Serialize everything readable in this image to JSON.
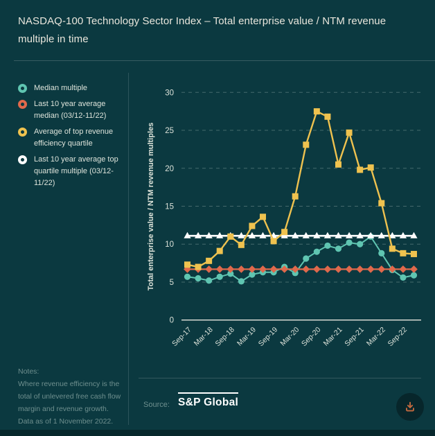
{
  "title": "NASDAQ-100 Technology Sector Index – Total enterprise value / NTM revenue multiple in time",
  "legend": {
    "items": [
      {
        "label": "Median multiple",
        "color": "#5FC5B1"
      },
      {
        "label": "Last 10 year average median (03/12-11/22)",
        "color": "#E0694C"
      },
      {
        "label": "Average of top revenue efficiency quartile",
        "color": "#EFC24F"
      },
      {
        "label": "Last 10 year average top quartile multiple (03/12-11/22)",
        "color": "#FFFFFF"
      }
    ]
  },
  "notes": {
    "heading": "Notes:",
    "body": "Where revenue efficiency is the total of unlevered free cash flow margin and revenue growth. Data as of 1 November 2022."
  },
  "source": {
    "label": "Source:",
    "name": "S&P Global"
  },
  "download": {
    "icon": "download-icon",
    "color": "#C2693F"
  },
  "colors": {
    "background": "#0B3940",
    "title_text": "#E9E6DC",
    "axis_text": "#DCE2D9",
    "muted_text": "#6E8F8E",
    "gridline": "rgba(224,232,226,0.28)",
    "zero_axis": "#E8E6DF"
  },
  "chart_data": {
    "type": "line",
    "title": "NASDAQ-100 Technology Sector Index – Total enterprise value / NTM revenue multiple in time",
    "xlabel": "",
    "ylabel": "Total enterprise value / NTM revenue multiples",
    "ylim": [
      0,
      30
    ],
    "yticks": [
      0,
      5,
      10,
      15,
      20,
      25,
      30
    ],
    "grid": "horizontal-dashed",
    "legend_position": "left",
    "categories": [
      "Sep-17",
      "Dec-17",
      "Mar-18",
      "Jun-18",
      "Sep-18",
      "Dec-18",
      "Mar-19",
      "Jun-19",
      "Sep-19",
      "Dec-19",
      "Mar-20",
      "Jun-20",
      "Sep-20",
      "Dec-20",
      "Mar-21",
      "Jun-21",
      "Sep-21",
      "Dec-21",
      "Mar-22",
      "Jun-22",
      "Sep-22",
      "Nov-22"
    ],
    "x_tick_labels": [
      "Sep-17",
      "Mar-18",
      "Sep-18",
      "Mar-19",
      "Sep-19",
      "Mar-20",
      "Sep-20",
      "Mar-21",
      "Sep-21",
      "Mar-22",
      "Sep-22"
    ],
    "x_tick_indices": [
      0,
      2,
      4,
      6,
      8,
      10,
      12,
      14,
      16,
      18,
      20
    ],
    "series": [
      {
        "name": "Median multiple",
        "color": "#5FC5B1",
        "marker": "circle",
        "values": [
          5.7,
          5.5,
          5.2,
          5.7,
          6.1,
          5.1,
          6.0,
          6.3,
          6.3,
          7.0,
          6.2,
          8.1,
          9.0,
          9.8,
          9.4,
          10.2,
          10.0,
          11.0,
          8.8,
          6.6,
          5.6,
          5.9
        ]
      },
      {
        "name": "Last 10 year average top quartile multiple (03/12-11/22)",
        "color": "#FFFFFF",
        "marker": "triangle",
        "values": [
          11.1,
          11.1,
          11.1,
          11.1,
          11.1,
          11.1,
          11.1,
          11.1,
          11.1,
          11.1,
          11.1,
          11.1,
          11.1,
          11.1,
          11.1,
          11.1,
          11.1,
          11.1,
          11.1,
          11.1,
          11.1,
          11.1
        ]
      },
      {
        "name": "Last 10 year average median (03/12-11/22)",
        "color": "#E0694C",
        "marker": "diamond",
        "values": [
          6.7,
          6.7,
          6.7,
          6.7,
          6.7,
          6.7,
          6.7,
          6.7,
          6.7,
          6.7,
          6.7,
          6.7,
          6.7,
          6.7,
          6.7,
          6.7,
          6.7,
          6.7,
          6.7,
          6.7,
          6.7,
          6.7
        ]
      },
      {
        "name": "Average of top revenue efficiency quartile",
        "color": "#EFC24F",
        "marker": "square",
        "values": [
          7.3,
          7.0,
          7.8,
          9.1,
          11.0,
          9.9,
          12.4,
          13.6,
          10.4,
          11.6,
          16.3,
          23.1,
          27.5,
          26.8,
          20.5,
          24.7,
          19.8,
          20.1,
          15.4,
          9.4,
          8.8,
          8.7
        ]
      }
    ]
  }
}
